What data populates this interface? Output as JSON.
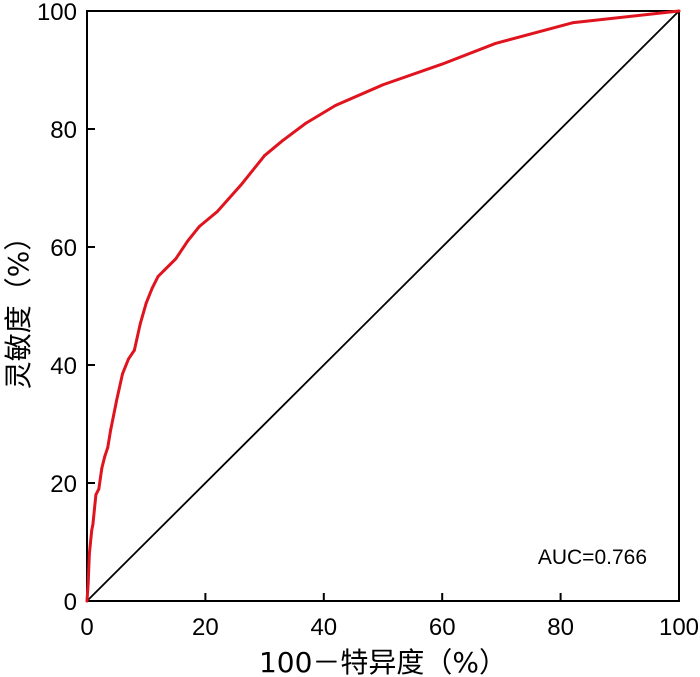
{
  "chart_data": {
    "type": "line",
    "title": "",
    "xlabel": "100－特异度（%）",
    "ylabel": "灵敏度（%）",
    "xlim": [
      0,
      100
    ],
    "ylim": [
      0,
      100
    ],
    "xticks": [
      "0",
      "20",
      "40",
      "60",
      "80",
      "100"
    ],
    "yticks": [
      "0",
      "20",
      "40",
      "60",
      "80",
      "100"
    ],
    "grid": false,
    "annotation": "AUC=0.766",
    "colors": {
      "roc": "#e0141e",
      "reference": "#000000",
      "frame": "#000000"
    },
    "series": [
      {
        "x": [
          0,
          0.2,
          0.4,
          0.6,
          0.8,
          1.0,
          1.5,
          2.0,
          2.5,
          3.0,
          3.5,
          4.0,
          5.0,
          6.0,
          7.0,
          8.0,
          9.0,
          10.0,
          11.0,
          12.0,
          13.0,
          14.0,
          15.0,
          17.0,
          19.0,
          22.0,
          26.0,
          30.0,
          33.0,
          37.0,
          42.0,
          50.0,
          60.0,
          69.0,
          82.0,
          100.0
        ],
        "y": [
          0,
          3.0,
          8.0,
          10.0,
          12.0,
          13.0,
          18.0,
          19.0,
          22.5,
          24.5,
          26.0,
          29.0,
          34.0,
          38.5,
          41.0,
          42.5,
          47.0,
          50.5,
          53.0,
          55.0,
          56.0,
          57.0,
          58.0,
          61.0,
          63.5,
          66.0,
          70.5,
          75.5,
          78.0,
          81.0,
          84.0,
          87.5,
          91.0,
          94.5,
          98.0,
          100.0
        ]
      },
      {
        "x": [
          0,
          100
        ],
        "y": [
          0,
          100
        ]
      }
    ]
  }
}
